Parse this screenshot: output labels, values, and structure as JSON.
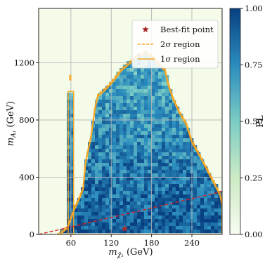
{
  "chart_data": {
    "type": "heatmap",
    "xlabel": "m_{χ̃₁} (GeV)",
    "ylabel": "m_{A₁} (GeV)",
    "colorbar_label": "PL",
    "xlim": [
      12,
      285
    ],
    "ylim": [
      0,
      1580
    ],
    "xticks": [
      60,
      120,
      180,
      240
    ],
    "yticks": [
      0,
      400,
      800,
      1200
    ],
    "colorbar_ticks": [
      "0.00",
      "0.25",
      "0.50",
      "0.75",
      "1.00"
    ],
    "grid": true,
    "colormap": [
      "#f7fcf0",
      "#ccebc5",
      "#7bccc4",
      "#2b8cbe",
      "#084081"
    ],
    "best_fit_point": {
      "x": 140,
      "y": 40,
      "label": "Best-fit point",
      "color": "#a52a2a"
    },
    "reference_line": {
      "x": [
        12,
        285
      ],
      "y": [
        0,
        300
      ],
      "color": "#d62728",
      "style": "dashed"
    },
    "legend": {
      "placement": "top-right",
      "entries": [
        {
          "label": "Best-fit point",
          "marker": "star",
          "color": "#a52a2a"
        },
        {
          "label": "2σ region",
          "style": "dashed",
          "color": "#ff9900"
        },
        {
          "label": "1σ region",
          "style": "solid",
          "color": "#f5a623"
        }
      ]
    },
    "allowed_region": [
      [
        40,
        0
      ],
      [
        55,
        60
      ],
      [
        62,
        150
      ],
      [
        66,
        200
      ],
      [
        72,
        260
      ],
      [
        78,
        330
      ],
      [
        82,
        520
      ],
      [
        90,
        700
      ],
      [
        96,
        900
      ],
      [
        100,
        980
      ],
      [
        110,
        1020
      ],
      [
        122,
        1080
      ],
      [
        135,
        1160
      ],
      [
        150,
        1220
      ],
      [
        160,
        1260
      ],
      [
        170,
        1280
      ],
      [
        180,
        1260
      ],
      [
        190,
        1200
      ],
      [
        200,
        1160
      ],
      [
        205,
        1060
      ],
      [
        212,
        960
      ],
      [
        222,
        860
      ],
      [
        232,
        780
      ],
      [
        240,
        660
      ],
      [
        252,
        560
      ],
      [
        262,
        470
      ],
      [
        272,
        380
      ],
      [
        282,
        290
      ],
      [
        285,
        220
      ],
      [
        285,
        0
      ]
    ],
    "spike_regions": [
      {
        "x": [
          56,
          64
        ],
        "y": [
          0,
          1000
        ]
      },
      {
        "x": [
          58,
          60
        ],
        "y": [
          1080,
          1110
        ]
      }
    ]
  }
}
